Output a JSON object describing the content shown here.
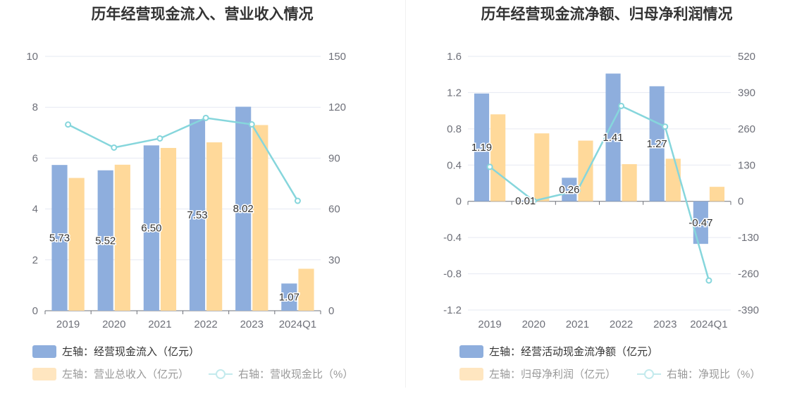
{
  "chart_data": [
    {
      "type": "bar",
      "title": "历年经营现金流入、营业收入情况",
      "categories": [
        "2019",
        "2020",
        "2021",
        "2022",
        "2023",
        "2024Q1"
      ],
      "series": [
        {
          "name": "左轴：经营现金流入（亿元）",
          "axis": "left",
          "type": "bar",
          "color": "#8eaedd",
          "values": [
            5.73,
            5.52,
            6.5,
            7.53,
            8.02,
            1.07
          ],
          "labels": [
            "5.73",
            "5.52",
            "6.50",
            "7.53",
            "8.02",
            "1.07"
          ]
        },
        {
          "name": "左轴：营业总收入（亿元）",
          "axis": "left",
          "type": "bar",
          "color": "#ffd99a",
          "values": [
            5.22,
            5.74,
            6.4,
            6.62,
            7.3,
            1.65
          ]
        },
        {
          "name": "右轴：营收现金比（%）",
          "axis": "right",
          "type": "line",
          "color": "#86d6dc",
          "values": [
            109.8,
            96.2,
            101.6,
            113.7,
            109.9,
            64.8
          ]
        }
      ],
      "y_left": {
        "min": 0,
        "max": 10,
        "ticks": [
          "10",
          "8",
          "6",
          "4",
          "2",
          "0"
        ]
      },
      "y_right": {
        "min": 0,
        "max": 150,
        "ticks": [
          "150",
          "120",
          "90",
          "60",
          "30",
          "0"
        ]
      },
      "grid": true,
      "legend_position": "bottom-left"
    },
    {
      "type": "bar",
      "title": "历年经营现金流净额、归母净利润情况",
      "categories": [
        "2019",
        "2020",
        "2021",
        "2022",
        "2023",
        "2024Q1"
      ],
      "series": [
        {
          "name": "左轴：经营活动现金流净额（亿元）",
          "axis": "left",
          "type": "bar",
          "color": "#8eaedd",
          "values": [
            1.19,
            0.01,
            0.26,
            1.41,
            1.27,
            -0.47
          ],
          "labels": [
            "1.19",
            "0.01",
            "0.26",
            "1.41",
            "1.27",
            "-0.47"
          ]
        },
        {
          "name": "左轴：归母净利润（亿元）",
          "axis": "left",
          "type": "bar",
          "color": "#ffd99a",
          "values": [
            0.96,
            0.75,
            0.67,
            0.41,
            0.47,
            0.16
          ]
        },
        {
          "name": "右轴：净现比（%）",
          "axis": "right",
          "type": "line",
          "color": "#86d6dc",
          "values": [
            123.6,
            1.4,
            38.4,
            342.0,
            268.0,
            -284.0
          ]
        }
      ],
      "y_left": {
        "min": -1.2,
        "max": 1.6,
        "ticks": [
          "1.6",
          "1.2",
          "0.8",
          "0.4",
          "0",
          "-0.4",
          "-0.8",
          "-1.2"
        ]
      },
      "y_right": {
        "min": -390,
        "max": 520,
        "ticks": [
          "520",
          "390",
          "260",
          "130",
          "0",
          "-130",
          "-260",
          "-390"
        ]
      },
      "grid": true,
      "legend_position": "bottom-left"
    }
  ]
}
